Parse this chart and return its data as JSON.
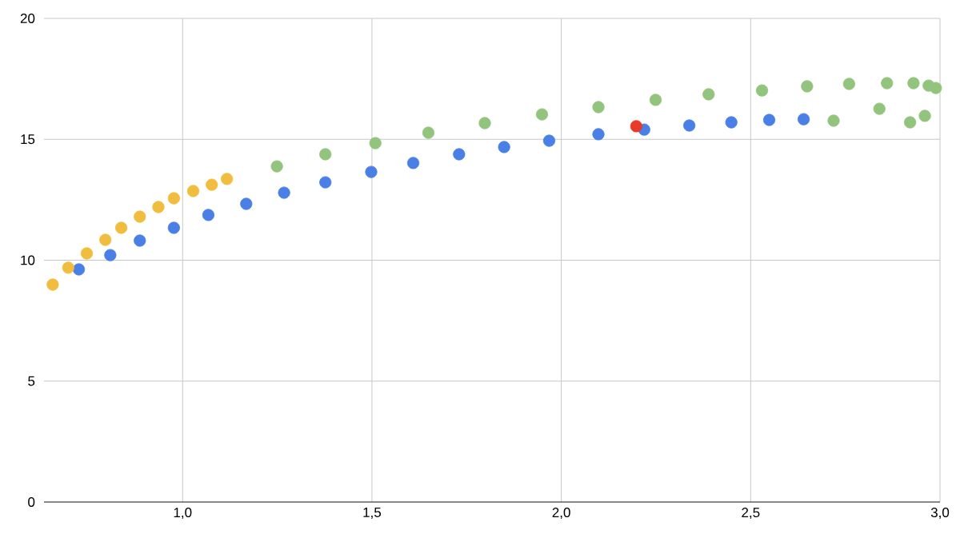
{
  "chart_data": {
    "type": "scatter",
    "marker": "circle",
    "grid": true,
    "xlim": [
      0.634,
      3.0
    ],
    "ylim": [
      0,
      20
    ],
    "xticks": [
      {
        "value": 1.0,
        "label": "1,0"
      },
      {
        "value": 1.5,
        "label": "1,5"
      },
      {
        "value": 2.0,
        "label": "2,0"
      },
      {
        "value": 2.5,
        "label": "2,5"
      },
      {
        "value": 3.0,
        "label": "3,0"
      }
    ],
    "yticks": [
      0,
      5,
      10,
      15,
      20
    ],
    "series": [
      {
        "color": "#4a7fe6",
        "x": [
          0.726,
          0.809,
          0.887,
          0.977,
          1.068,
          1.168,
          1.268,
          1.377,
          1.498,
          1.609,
          1.73,
          1.849,
          1.968,
          2.098,
          2.219,
          2.338,
          2.449,
          2.549,
          2.64
        ],
        "values": [
          9.62,
          10.21,
          10.81,
          11.34,
          11.87,
          12.33,
          12.79,
          13.22,
          13.65,
          14.02,
          14.38,
          14.68,
          14.94,
          15.21,
          15.4,
          15.57,
          15.7,
          15.8,
          15.83
        ]
      },
      {
        "color": "#f0bd3e",
        "x": [
          0.657,
          0.698,
          0.747,
          0.796,
          0.838,
          0.887,
          0.936,
          0.977,
          1.028,
          1.077,
          1.117
        ],
        "values": [
          8.99,
          9.69,
          10.28,
          10.84,
          11.34,
          11.8,
          12.2,
          12.56,
          12.86,
          13.12,
          13.36
        ]
      },
      {
        "color": "#93c47d",
        "x": [
          1.249,
          1.377,
          1.509,
          1.649,
          1.798,
          1.949,
          2.098,
          2.249,
          2.389,
          2.53,
          2.649,
          2.719,
          2.76,
          2.84,
          2.86,
          2.921,
          2.93,
          2.96,
          2.97,
          2.989
        ],
        "values": [
          13.88,
          14.38,
          14.84,
          15.27,
          15.67,
          16.03,
          16.33,
          16.63,
          16.86,
          17.02,
          17.19,
          15.77,
          17.29,
          16.26,
          17.32,
          15.7,
          17.32,
          15.97,
          17.22,
          17.12
        ]
      },
      {
        "color": "#e8392b",
        "x": [
          2.198
        ],
        "values": [
          15.54
        ]
      }
    ]
  }
}
